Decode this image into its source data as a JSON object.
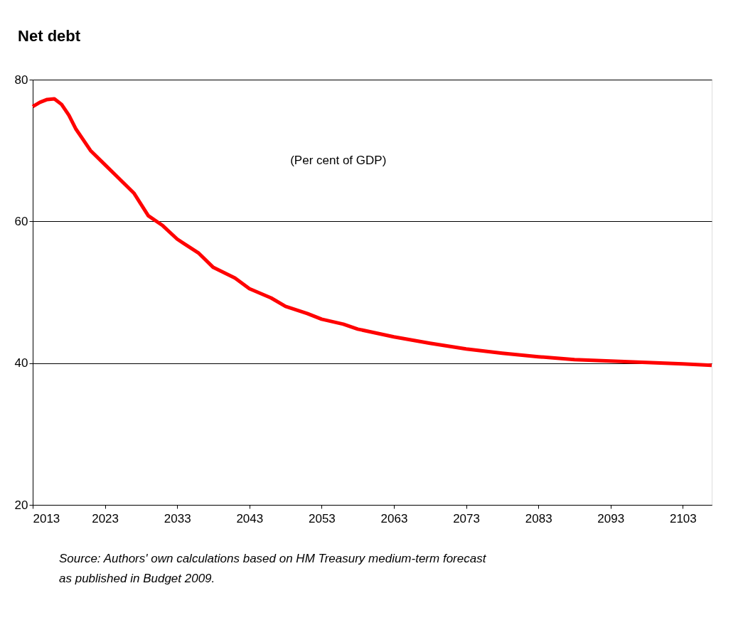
{
  "chart_data": {
    "type": "line",
    "title": "Net debt",
    "x": [
      2013,
      2014,
      2015,
      2016,
      2017,
      2018,
      2019,
      2020,
      2021,
      2023,
      2025,
      2027,
      2029,
      2031,
      2033,
      2036,
      2038,
      2041,
      2043,
      2046,
      2048,
      2051,
      2053,
      2056,
      2058,
      2063,
      2068,
      2073,
      2078,
      2083,
      2088,
      2093,
      2098,
      2103,
      2107
    ],
    "series": [
      {
        "color": "#ff0000",
        "values": [
          76.2,
          76.8,
          77.2,
          77.3,
          76.5,
          75,
          73,
          71.5,
          70,
          68,
          66,
          64,
          60.8,
          59.4,
          57.5,
          55.5,
          53.5,
          52,
          50.5,
          49.2,
          48,
          47,
          46.2,
          45.5,
          44.8,
          43.7,
          42.8,
          42,
          41.4,
          40.9,
          40.5,
          40.3,
          40.1,
          39.9,
          39.7
        ]
      }
    ],
    "xlim": [
      2013,
      2107
    ],
    "xticks": [
      2013,
      2023,
      2033,
      2043,
      2053,
      2063,
      2073,
      2083,
      2093,
      2103
    ],
    "ylim": [
      20,
      80
    ],
    "yticks": [
      20,
      40,
      60,
      80
    ],
    "grid": "y",
    "legend": false,
    "marker": "none",
    "line_style": "solid",
    "annotations": [
      "(Per cent of GDP)",
      "Source: Authors' own calculations based on HM Treasury medium-term forecast as published in Budget 2009."
    ]
  }
}
